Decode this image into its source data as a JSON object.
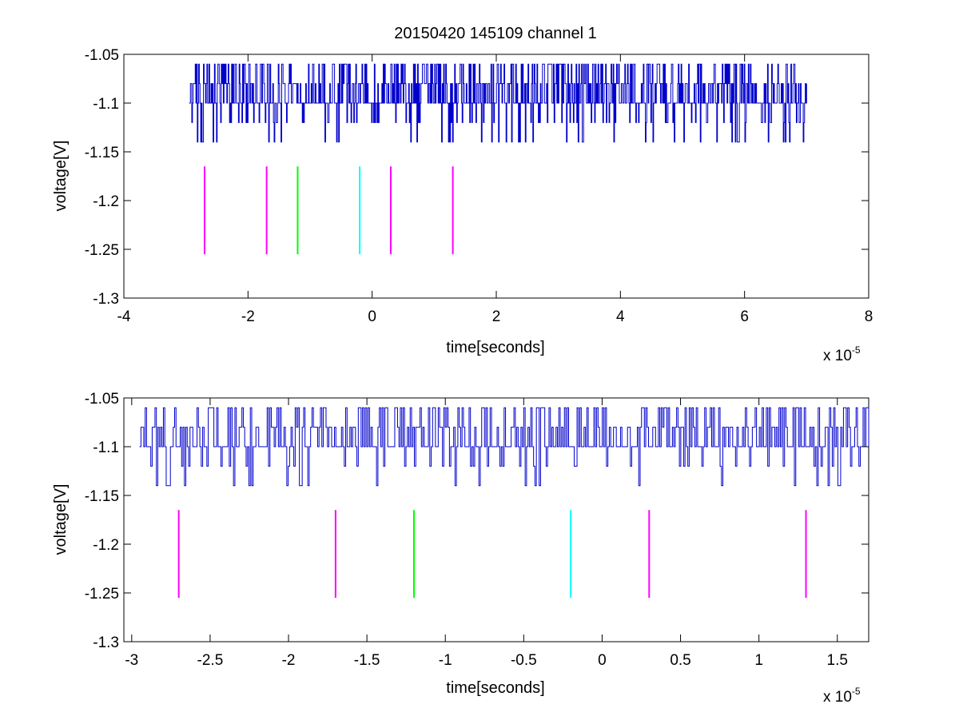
{
  "chart_data": [
    {
      "type": "line",
      "title": "20150420 145109 channel 1",
      "xlabel": "time[seconds]",
      "ylabel": "voltage[V]",
      "x_exponent_label": "x 10",
      "x_exponent_power": "-5",
      "xlim": [
        -4,
        8
      ],
      "ylim": [
        -1.3,
        -1.05
      ],
      "xticks": [
        -4,
        -2,
        0,
        2,
        4,
        6,
        8
      ],
      "xtick_labels": [
        "-4",
        "-2",
        "0",
        "2",
        "4",
        "6",
        "8"
      ],
      "yticks": [
        -1.3,
        -1.25,
        -1.2,
        -1.15,
        -1.1,
        -1.05
      ],
      "ytick_labels": [
        "-1.3",
        "-1.25",
        "-1.2",
        "-1.15",
        "-1.1",
        "-1.05"
      ],
      "signal": {
        "color": "#0000cc",
        "x_start": -2.95,
        "x_end": 7.0,
        "levels": [
          -1.06,
          -1.08,
          -1.1,
          -1.12,
          -1.14
        ],
        "baseline": -1.1
      },
      "markers": [
        {
          "x": -2.7,
          "y_from": -1.255,
          "y_to": -1.165,
          "color": "#ff00ff"
        },
        {
          "x": -1.7,
          "y_from": -1.255,
          "y_to": -1.165,
          "color": "#ff00ff"
        },
        {
          "x": -1.2,
          "y_from": -1.255,
          "y_to": -1.165,
          "color": "#00ff00"
        },
        {
          "x": -0.2,
          "y_from": -1.255,
          "y_to": -1.165,
          "color": "#00ffff"
        },
        {
          "x": 0.3,
          "y_from": -1.255,
          "y_to": -1.165,
          "color": "#ff00ff"
        },
        {
          "x": 1.3,
          "y_from": -1.255,
          "y_to": -1.165,
          "color": "#ff00ff"
        }
      ],
      "grid": false
    },
    {
      "type": "line",
      "title": "",
      "xlabel": "time[seconds]",
      "ylabel": "voltage[V]",
      "x_exponent_label": "x 10",
      "x_exponent_power": "-5",
      "xlim": [
        -3.05,
        1.7
      ],
      "ylim": [
        -1.3,
        -1.05
      ],
      "xticks": [
        -3,
        -2.5,
        -2,
        -1.5,
        -1,
        -0.5,
        0,
        0.5,
        1,
        1.5
      ],
      "xtick_labels": [
        "-3",
        "-2.5",
        "-2",
        "-1.5",
        "-1",
        "-0.5",
        "0",
        "0.5",
        "1",
        "1.5"
      ],
      "yticks": [
        -1.3,
        -1.25,
        -1.2,
        -1.15,
        -1.1,
        -1.05
      ],
      "ytick_labels": [
        "-1.3",
        "-1.25",
        "-1.2",
        "-1.15",
        "-1.1",
        "-1.05"
      ],
      "signal": {
        "color": "#0000cc",
        "x_start": -2.95,
        "x_end": 1.7,
        "levels": [
          -1.06,
          -1.08,
          -1.1,
          -1.12,
          -1.14
        ],
        "baseline": -1.1
      },
      "markers": [
        {
          "x": -2.7,
          "y_from": -1.255,
          "y_to": -1.165,
          "color": "#ff00ff"
        },
        {
          "x": -1.7,
          "y_from": -1.255,
          "y_to": -1.165,
          "color": "#ff00ff"
        },
        {
          "x": -1.2,
          "y_from": -1.255,
          "y_to": -1.165,
          "color": "#00ff00"
        },
        {
          "x": -0.2,
          "y_from": -1.255,
          "y_to": -1.165,
          "color": "#00ffff"
        },
        {
          "x": 0.3,
          "y_from": -1.255,
          "y_to": -1.165,
          "color": "#ff00ff"
        },
        {
          "x": 1.3,
          "y_from": -1.255,
          "y_to": -1.165,
          "color": "#ff00ff"
        }
      ],
      "grid": false
    }
  ]
}
